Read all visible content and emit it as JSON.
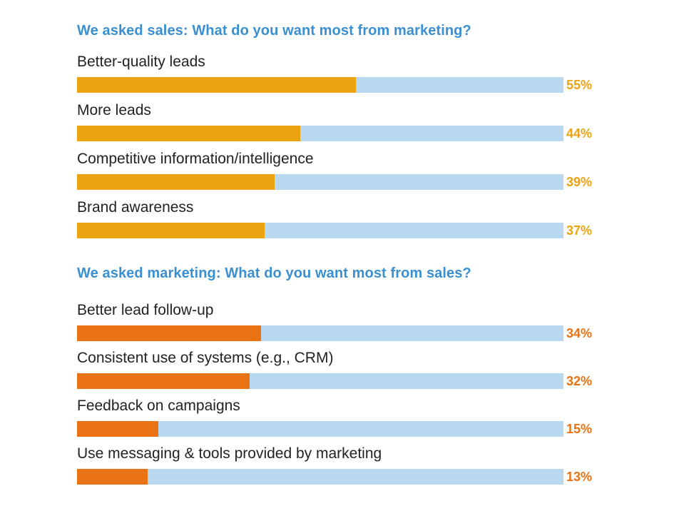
{
  "chart_data": [
    {
      "type": "bar",
      "orientation": "horizontal",
      "title": "We asked sales: What do you want most from marketing?",
      "categories": [
        "Better-quality leads",
        "More leads",
        "Competitive information/intelligence",
        "Brand awareness"
      ],
      "values": [
        55,
        44,
        39,
        37
      ],
      "value_labels": [
        "55%",
        "44%",
        "39%",
        "37%"
      ],
      "xlim": [
        0,
        96
      ],
      "color": "#eba312",
      "track_color": "#b7d8ee"
    },
    {
      "type": "bar",
      "orientation": "horizontal",
      "title": "We asked marketing: What do you want most from sales?",
      "categories": [
        "Better lead follow-up",
        "Consistent use of systems (e.g., CRM)",
        "Feedback on campaigns",
        "Use messaging & tools provided by marketing"
      ],
      "values": [
        34,
        32,
        15,
        13
      ],
      "value_labels": [
        "34%",
        "32%",
        "15%",
        "13%"
      ],
      "xlim": [
        0,
        90
      ],
      "color": "#e97314",
      "track_color": "#b7d8ee"
    }
  ]
}
